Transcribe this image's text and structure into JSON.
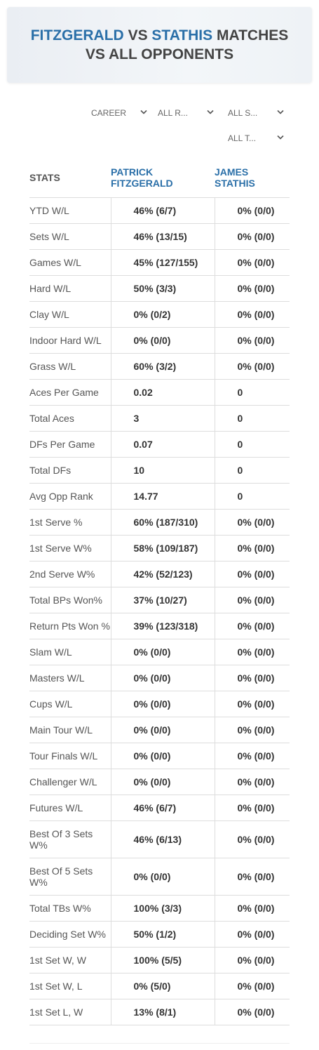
{
  "header": {
    "title": {
      "player1": "FITZGERALD",
      "vs": "VS",
      "player2": "STATHIS",
      "rest": "MATCHES VS ALL OPPONENTS"
    }
  },
  "filters": [
    "CAREER",
    "ALL R...",
    "ALL S...",
    "ALL T..."
  ],
  "table": {
    "columns": [
      "STATS",
      "PATRICK FITZGERALD",
      "JAMES STATHIS"
    ],
    "rows": [
      [
        "YTD W/L",
        "46% (6/7)",
        "0% (0/0)"
      ],
      [
        "Sets W/L",
        "46% (13/15)",
        "0% (0/0)"
      ],
      [
        "Games W/L",
        "45% (127/155)",
        "0% (0/0)"
      ],
      [
        "Hard W/L",
        "50% (3/3)",
        "0% (0/0)"
      ],
      [
        "Clay W/L",
        "0% (0/2)",
        "0% (0/0)"
      ],
      [
        "Indoor Hard W/L",
        "0% (0/0)",
        "0% (0/0)"
      ],
      [
        "Grass W/L",
        "60% (3/2)",
        "0% (0/0)"
      ],
      [
        "Aces Per Game",
        "0.02",
        "0"
      ],
      [
        "Total Aces",
        "3",
        "0"
      ],
      [
        "DFs Per Game",
        "0.07",
        "0"
      ],
      [
        "Total DFs",
        "10",
        "0"
      ],
      [
        "Avg Opp Rank",
        "14.77",
        "0"
      ],
      [
        "1st Serve %",
        "60% (187/310)",
        "0% (0/0)"
      ],
      [
        "1st Serve W%",
        "58% (109/187)",
        "0% (0/0)"
      ],
      [
        "2nd Serve W%",
        "42% (52/123)",
        "0% (0/0)"
      ],
      [
        "Total BPs Won%",
        "37% (10/27)",
        "0% (0/0)"
      ],
      [
        "Return Pts Won %",
        "39% (123/318)",
        "0% (0/0)"
      ],
      [
        "Slam W/L",
        "0% (0/0)",
        "0% (0/0)"
      ],
      [
        "Masters W/L",
        "0% (0/0)",
        "0% (0/0)"
      ],
      [
        "Cups W/L",
        "0% (0/0)",
        "0% (0/0)"
      ],
      [
        "Main Tour W/L",
        "0% (0/0)",
        "0% (0/0)"
      ],
      [
        "Tour Finals W/L",
        "0% (0/0)",
        "0% (0/0)"
      ],
      [
        "Challenger W/L",
        "0% (0/0)",
        "0% (0/0)"
      ],
      [
        "Futures W/L",
        "46% (6/7)",
        "0% (0/0)"
      ],
      [
        "Best Of 3 Sets W%",
        "46% (6/13)",
        "0% (0/0)"
      ],
      [
        "Best Of 5 Sets W%",
        "0% (0/0)",
        "0% (0/0)"
      ],
      [
        "Total TBs W%",
        "100% (3/3)",
        "0% (0/0)"
      ],
      [
        "Deciding Set W%",
        "50% (1/2)",
        "0% (0/0)"
      ],
      [
        "1st Set W, W",
        "100% (5/5)",
        "0% (0/0)"
      ],
      [
        "1st Set W, L",
        "0% (5/0)",
        "0% (0/0)"
      ],
      [
        "1st Set L, W",
        "13% (8/1)",
        "0% (0/0)"
      ]
    ]
  }
}
